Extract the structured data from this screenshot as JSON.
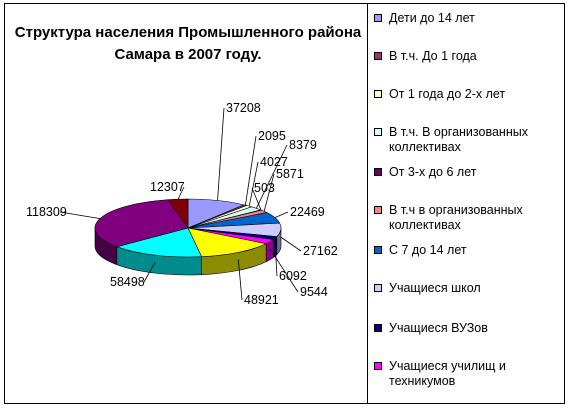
{
  "chart_data": {
    "type": "pie",
    "title": "Структура населения Промышленного района\nСамара в 2007 году.",
    "labels": [
      "Дети до 14 лет",
      "В т.ч. До 1 года",
      "От 1 года до 2-х лет",
      "В т.ч. В организованных коллективах",
      "От 3-х до 6 лет",
      "В т.ч в организованных коллективах",
      "С 7 до 14 лет",
      "Учащиеся школ",
      "Учащиеся ВУЗов",
      "Учащиеся училищ и техникумов",
      "",
      "",
      "",
      ""
    ],
    "values": [
      37208,
      2095,
      4027,
      8379,
      503,
      5871,
      22469,
      27162,
      6092,
      9544,
      48921,
      58498,
      118309,
      12307
    ],
    "colors": [
      "#9999ff",
      "#993366",
      "#ffffcc",
      "#ccffff",
      "#660066",
      "#ff8080",
      "#0066cc",
      "#ccccff",
      "#000080",
      "#ff00ff",
      "#ffff00",
      "#00ffff",
      "#800080",
      "#800000"
    ],
    "legend_position": "right"
  }
}
